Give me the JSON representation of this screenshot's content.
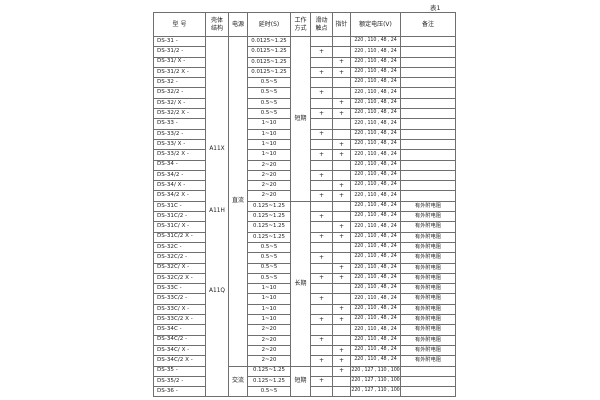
{
  "page": {
    "table_label": "表1"
  },
  "table": {
    "headers": {
      "model": "型 号",
      "shell": [
        "壳体",
        "结构"
      ],
      "power": "电源",
      "delay": "延时(S)",
      "work": [
        "工作",
        "方式"
      ],
      "slide": [
        "滑动",
        "触点"
      ],
      "pointer": "指针",
      "voltage": "额定电压(V)",
      "remark": "备注"
    },
    "shell_structure": {
      "labels": [
        "A11X",
        "A11H",
        "A11Q"
      ]
    },
    "power_groups": [
      {
        "label": "直流",
        "span": 32
      },
      {
        "label": "交流",
        "span": 3
      }
    ],
    "work_mode_groups": [
      {
        "label": "短期",
        "span": 16
      },
      {
        "label": "长期",
        "span": 16
      },
      {
        "label": "短期",
        "span": 3
      }
    ],
    "rows": [
      {
        "model": "DS-31 -",
        "delay": "0.0125~1.25",
        "slide": "",
        "pointer": "",
        "voltage": "220 , 110 , 48 , 24",
        "remark": ""
      },
      {
        "model": "DS-31/2 -",
        "delay": "0.0125~1.25",
        "slide": "+",
        "pointer": "",
        "voltage": "220 , 110 , 48 , 24",
        "remark": ""
      },
      {
        "model": "DS-31/ X -",
        "delay": "0.0125~1.25",
        "slide": "",
        "pointer": "+",
        "voltage": "220 , 110 , 48 , 24",
        "remark": ""
      },
      {
        "model": "DS-31/2 X -",
        "delay": "0.0125~1.25",
        "slide": "+",
        "pointer": "+",
        "voltage": "220 , 110 , 48 , 24",
        "remark": ""
      },
      {
        "model": "DS-32 -",
        "delay": "0.5~5",
        "slide": "",
        "pointer": "",
        "voltage": "220 , 110 , 48 , 24",
        "remark": ""
      },
      {
        "model": "DS-32/2 -",
        "delay": "0.5~5",
        "slide": "+",
        "pointer": "",
        "voltage": "220 , 110 , 48 , 24",
        "remark": ""
      },
      {
        "model": "DS-32/ X -",
        "delay": "0.5~5",
        "slide": "",
        "pointer": "+",
        "voltage": "220 , 110 , 48 , 24",
        "remark": ""
      },
      {
        "model": "DS-32/2 X -",
        "delay": "0.5~5",
        "slide": "+",
        "pointer": "+",
        "voltage": "220 , 110 , 48 , 24",
        "remark": ""
      },
      {
        "model": "DS-33 -",
        "delay": "1~10",
        "slide": "",
        "pointer": "",
        "voltage": "220 , 110 , 48 , 24",
        "remark": ""
      },
      {
        "model": "DS-33/2 -",
        "delay": "1~10",
        "slide": "+",
        "pointer": "",
        "voltage": "220 , 110 , 48 , 24",
        "remark": ""
      },
      {
        "model": "DS-33/ X -",
        "delay": "1~10",
        "slide": "",
        "pointer": "+",
        "voltage": "220 , 110 , 48 , 24",
        "remark": ""
      },
      {
        "model": "DS-33/2 X -",
        "delay": "1~10",
        "slide": "+",
        "pointer": "+",
        "voltage": "220 , 110 , 48 , 24",
        "remark": ""
      },
      {
        "model": "DS-34 -",
        "delay": "2~20",
        "slide": "",
        "pointer": "",
        "voltage": "220 , 110 , 48 , 24",
        "remark": ""
      },
      {
        "model": "DS-34/2 -",
        "delay": "2~20",
        "slide": "+",
        "pointer": "",
        "voltage": "220 , 110 , 48 , 24",
        "remark": ""
      },
      {
        "model": "DS-34/ X -",
        "delay": "2~20",
        "slide": "",
        "pointer": "+",
        "voltage": "220 , 110 , 48 , 24",
        "remark": ""
      },
      {
        "model": "DS-34/2 X -",
        "delay": "2~20",
        "slide": "+",
        "pointer": "+",
        "voltage": "220 , 110 , 48 , 24",
        "remark": ""
      },
      {
        "model": "DS-31C -",
        "delay": "0.125~1.25",
        "slide": "",
        "pointer": "",
        "voltage": "220 , 110 , 48 , 24",
        "remark": "有外附电阻"
      },
      {
        "model": "DS-31C/2 -",
        "delay": "0.125~1.25",
        "slide": "+",
        "pointer": "",
        "voltage": "220 , 110 , 48 , 24",
        "remark": "有外附电阻"
      },
      {
        "model": "DS-31C/ X -",
        "delay": "0.125~1.25",
        "slide": "",
        "pointer": "+",
        "voltage": "220 , 110 , 48 , 24",
        "remark": "有外附电阻"
      },
      {
        "model": "DS-31C/2 X -",
        "delay": "0.125~1.25",
        "slide": "+",
        "pointer": "+",
        "voltage": "220 , 110 , 48 , 24",
        "remark": "有外附电阻"
      },
      {
        "model": "DS-32C -",
        "delay": "0.5~5",
        "slide": "",
        "pointer": "",
        "voltage": "220 , 110 , 48 , 24",
        "remark": "有外附电阻"
      },
      {
        "model": "DS-32C/2 -",
        "delay": "0.5~5",
        "slide": "+",
        "pointer": "",
        "voltage": "220 , 110 , 48 , 24",
        "remark": "有外附电阻"
      },
      {
        "model": "DS-32C/ X -",
        "delay": "0.5~5",
        "slide": "",
        "pointer": "+",
        "voltage": "220 , 110 , 48 , 24",
        "remark": "有外附电阻"
      },
      {
        "model": "DS-32C/2 X -",
        "delay": "0.5~5",
        "slide": "+",
        "pointer": "+",
        "voltage": "220 , 110 , 48 , 24",
        "remark": "有外附电阻"
      },
      {
        "model": "DS-33C -",
        "delay": "1~10",
        "slide": "",
        "pointer": "",
        "voltage": "220 , 110 , 48 , 24",
        "remark": "有外附电阻"
      },
      {
        "model": "DS-33C/2 -",
        "delay": "1~10",
        "slide": "+",
        "pointer": "",
        "voltage": "220 , 110 , 48 , 24",
        "remark": "有外附电阻"
      },
      {
        "model": "DS-33C/ X -",
        "delay": "1~10",
        "slide": "",
        "pointer": "+",
        "voltage": "220 , 110 , 48 , 24",
        "remark": "有外附电阻"
      },
      {
        "model": "DS-33C/2 X -",
        "delay": "1~10",
        "slide": "+",
        "pointer": "+",
        "voltage": "220 , 110 , 48 , 24",
        "remark": "有外附电阻"
      },
      {
        "model": "DS-34C -",
        "delay": "2~20",
        "slide": "",
        "pointer": "",
        "voltage": "220 , 110 , 48 , 24",
        "remark": "有外附电阻"
      },
      {
        "model": "DS-34C/2 -",
        "delay": "2~20",
        "slide": "+",
        "pointer": "",
        "voltage": "220 , 110 , 48 , 24",
        "remark": "有外附电阻"
      },
      {
        "model": "DS-34C/ X -",
        "delay": "2~20",
        "slide": "",
        "pointer": "+",
        "voltage": "220 , 110 , 48 , 24",
        "remark": "有外附电阻"
      },
      {
        "model": "DS-34C/2 X -",
        "delay": "2~20",
        "slide": "+",
        "pointer": "+",
        "voltage": "220 , 110 , 48 , 24",
        "remark": "有外附电阻"
      },
      {
        "model": "DS-35 -",
        "delay": "0.125~1.25",
        "slide": "",
        "pointer": "+",
        "voltage": "220 , 127 , 110 , 100",
        "remark": ""
      },
      {
        "model": "DS-35/2 -",
        "delay": "0.125~1.25",
        "slide": "+",
        "pointer": "",
        "voltage": "220 , 127 , 110 , 100",
        "remark": ""
      },
      {
        "model": "DS-36 -",
        "delay": "0.5~5",
        "slide": "",
        "pointer": "",
        "voltage": "220 , 127 , 110 , 100",
        "remark": ""
      }
    ]
  }
}
